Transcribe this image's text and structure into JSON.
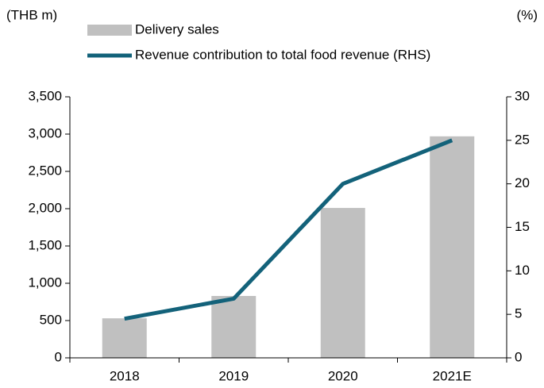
{
  "chart_data": {
    "type": "bar+line",
    "y_label": "(THB m)",
    "y2_label": "(%)",
    "categories": [
      "2018",
      "2019",
      "2020",
      "2021E"
    ],
    "series": [
      {
        "name": "Delivery sales",
        "type": "bar",
        "color": "#c0c0c0",
        "values": [
          530,
          830,
          2010,
          2970
        ]
      },
      {
        "name": "Revenue contribution to total food revenue (RHS)",
        "type": "line",
        "axis": "y2",
        "color": "#13627a",
        "values": [
          4.5,
          6.8,
          20,
          25
        ]
      }
    ],
    "ylim": [
      0,
      3500
    ],
    "yticks": [
      0,
      500,
      {
        "value": 1000,
        "label": "1,000"
      },
      {
        "value": 1500,
        "label": "1,500"
      },
      {
        "value": 2000,
        "label": "2,000"
      },
      {
        "value": 2500,
        "label": "2,500"
      },
      {
        "value": 3000,
        "label": "3,000"
      },
      {
        "value": 3500,
        "label": "3,500"
      }
    ],
    "y2lim": [
      0,
      30
    ],
    "y2ticks": [
      0,
      5,
      10,
      15,
      20,
      25,
      30
    ],
    "grid": false,
    "legend": "top"
  }
}
